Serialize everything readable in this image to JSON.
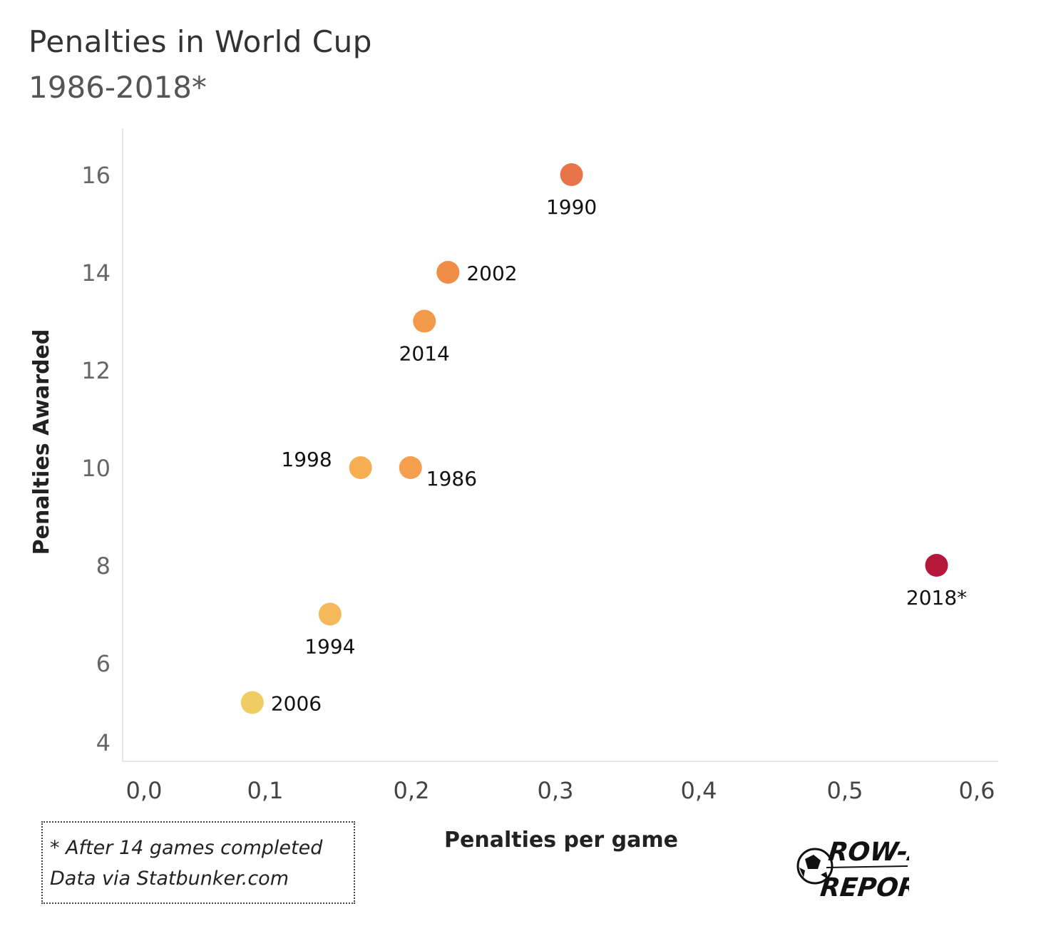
{
  "title": "Penalties in World Cup",
  "subtitle": "1986-2018*",
  "note": {
    "line1": "* After 14 games completed",
    "line2": "Data via Statbunker.com"
  },
  "logo": {
    "line1": "ROW-Z",
    "line2": "REPORT"
  },
  "chart_data": {
    "type": "scatter",
    "xlabel": "Penalties per game",
    "ylabel": "Penalties Awarded",
    "xlim": [
      0,
      0.6
    ],
    "ylim": [
      4,
      16
    ],
    "x_ticks": [
      "0,0",
      "0,1",
      "0,2",
      "0,3",
      "0,4",
      "0,5",
      "0,6"
    ],
    "y_ticks": [
      "4",
      "6",
      "8",
      "10",
      "12",
      "14",
      "16"
    ],
    "grid": false,
    "points": [
      {
        "label": "1990",
        "x": 0.308,
        "y": 16,
        "color": "#e8744a",
        "label_pos": "below"
      },
      {
        "label": "2002",
        "x": 0.219,
        "y": 14,
        "color": "#f08c46",
        "label_pos": "right"
      },
      {
        "label": "2014",
        "x": 0.202,
        "y": 13,
        "color": "#f39a4a",
        "label_pos": "below"
      },
      {
        "label": "1998",
        "x": 0.156,
        "y": 10,
        "color": "#f7ad52",
        "label_pos": "left"
      },
      {
        "label": "1986",
        "x": 0.192,
        "y": 10,
        "color": "#f59f4e",
        "label_pos": "below-right"
      },
      {
        "label": "2018*",
        "x": 0.571,
        "y": 8,
        "color": "#b5183a",
        "label_pos": "below"
      },
      {
        "label": "1994",
        "x": 0.134,
        "y": 7,
        "color": "#f5b85a",
        "label_pos": "below"
      },
      {
        "label": "2006",
        "x": 0.078,
        "y": 5,
        "color": "#f0cd62",
        "label_pos": "right"
      }
    ]
  }
}
